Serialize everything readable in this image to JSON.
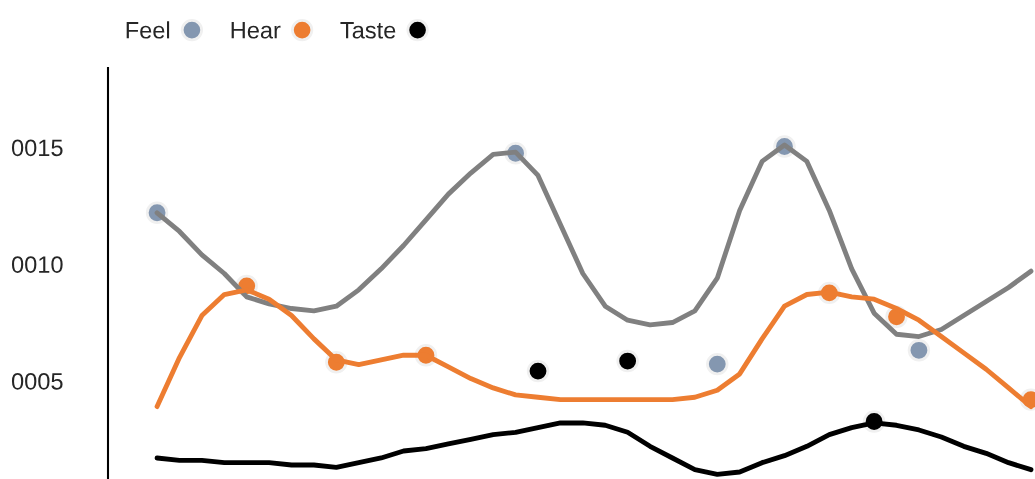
{
  "chart_data": {
    "type": "line",
    "ylim": [
      0.8,
      18.4
    ],
    "categories": [
      null,
      null,
      null,
      null,
      null,
      null,
      null,
      null,
      null,
      null,
      null,
      null,
      null,
      null,
      null,
      null,
      null,
      null,
      null,
      null,
      null,
      null,
      null,
      null,
      null,
      null,
      null,
      null,
      null,
      null,
      null,
      null,
      null,
      null,
      null,
      null,
      null,
      null,
      null,
      null
    ],
    "yticks": [
      {
        "value": 15,
        "label": "0015"
      },
      {
        "value": 10,
        "label": "0010"
      },
      {
        "value": 5,
        "label": "0005"
      }
    ],
    "tick_labels": "y",
    "grid": false,
    "legend": "top left",
    "line_style": "solid",
    "marker": "circle",
    "series": [
      {
        "color": "#808080",
        "marker": "none",
        "values": [
          12.2,
          11.4,
          10.4,
          9.6,
          8.6,
          8.3,
          8.1,
          8.0,
          8.2,
          8.9,
          9.8,
          10.8,
          11.9,
          13.0,
          13.9,
          14.7,
          14.8,
          13.8,
          11.7,
          9.6,
          8.2,
          7.6,
          7.4,
          7.5,
          8.0,
          9.4,
          12.3,
          14.4,
          15.1,
          14.4,
          12.3,
          9.8,
          7.9,
          7.0,
          6.9,
          7.2,
          7.8,
          8.4,
          9.0,
          9.7
        ]
      },
      {
        "color": "#ed7d31",
        "marker": "none",
        "values": [
          3.9,
          6.0,
          7.8,
          8.7,
          8.9,
          8.5,
          7.8,
          6.8,
          5.9,
          5.7,
          5.9,
          6.1,
          6.1,
          5.6,
          5.1,
          4.7,
          4.4,
          4.3,
          4.2,
          4.2,
          4.2,
          4.2,
          4.2,
          4.2,
          4.3,
          4.6,
          5.3,
          6.8,
          8.2,
          8.7,
          8.8,
          8.6,
          8.5,
          8.1,
          7.6,
          6.9,
          6.2,
          5.5,
          4.7,
          3.9
        ]
      },
      {
        "color": "#000000",
        "marker": "none",
        "values": [
          1.7,
          1.6,
          1.6,
          1.5,
          1.5,
          1.5,
          1.4,
          1.4,
          1.3,
          1.5,
          1.7,
          2.0,
          2.1,
          2.3,
          2.5,
          2.7,
          2.8,
          3.0,
          3.2,
          3.2,
          3.1,
          2.8,
          2.2,
          1.7,
          1.2,
          1.0,
          1.1,
          1.5,
          1.8,
          2.2,
          2.7,
          3.0,
          3.2,
          3.1,
          2.9,
          2.6,
          2.2,
          1.9,
          1.5,
          1.2
        ]
      },
      {
        "type": "scatter",
        "name": "Feel",
        "color": "#8497b0",
        "values": [
          12.2,
          null,
          null,
          null,
          null,
          null,
          null,
          null,
          null,
          null,
          null,
          null,
          null,
          null,
          null,
          null,
          14.75,
          null,
          null,
          null,
          null,
          null,
          null,
          null,
          null,
          5.72,
          null,
          null,
          15.04,
          null,
          null,
          null,
          null,
          null,
          6.31,
          null,
          null,
          null,
          null,
          null
        ]
      },
      {
        "type": "scatter",
        "name": "Hear",
        "color": "#ed7d31",
        "values": [
          null,
          null,
          null,
          null,
          9.07,
          null,
          null,
          null,
          5.8,
          null,
          null,
          null,
          6.1,
          null,
          null,
          null,
          null,
          null,
          null,
          null,
          null,
          null,
          null,
          null,
          null,
          null,
          null,
          null,
          null,
          null,
          8.77,
          null,
          null,
          7.75,
          null,
          null,
          null,
          null,
          null,
          4.2
        ]
      },
      {
        "type": "scatter",
        "name": "Taste",
        "color": "#000000",
        "values": [
          null,
          null,
          null,
          null,
          null,
          null,
          null,
          null,
          null,
          null,
          null,
          null,
          null,
          null,
          null,
          null,
          null,
          5.42,
          null,
          null,
          null,
          5.85,
          null,
          null,
          null,
          null,
          null,
          null,
          null,
          null,
          null,
          null,
          3.26,
          null,
          null,
          null,
          null,
          null,
          null,
          null
        ]
      }
    ]
  }
}
